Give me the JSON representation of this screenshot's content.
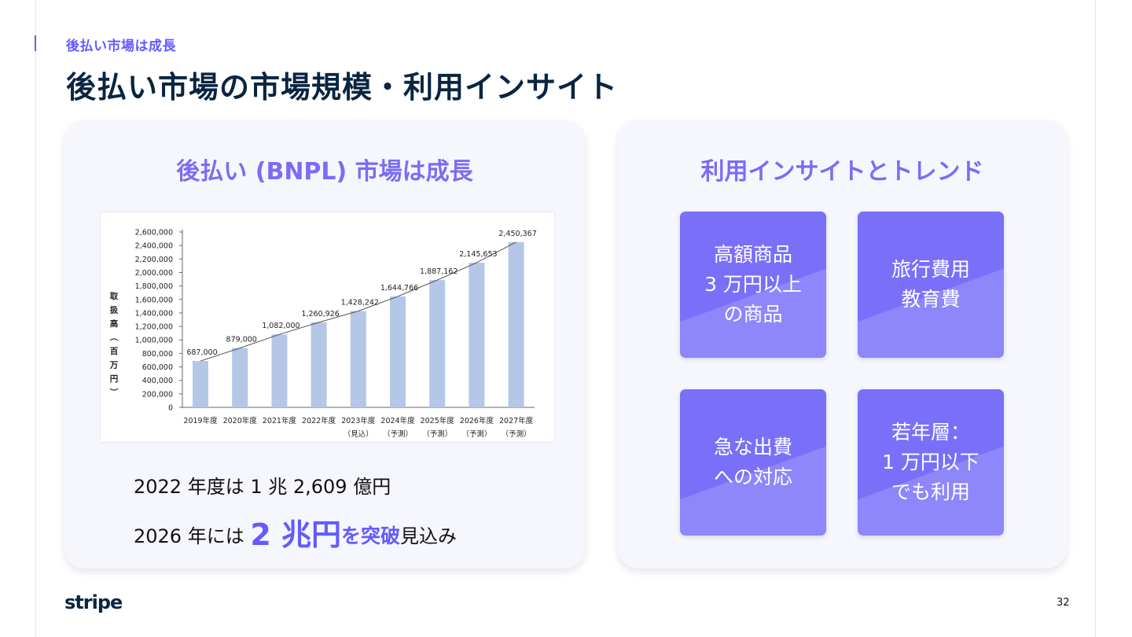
{
  "header": {
    "eyebrow": "後払い市場は成長",
    "title": "後払い市場の市場規模・利用インサイト"
  },
  "left_card": {
    "title": "後払い (BNPL) 市場は成長",
    "summary_line1": "2022 年度は 1 兆 2,609 億円",
    "summary_line2": {
      "prefix": "2026 年には ",
      "highlight_big": "2 兆円",
      "highlight_mid": "を突破",
      "suffix": "見込み"
    }
  },
  "right_card": {
    "title": "利用インサイトとトレンド",
    "tiles": [
      {
        "text": "高額商品\n3 万円以上\nの商品"
      },
      {
        "text": "旅行費用\n教育費"
      },
      {
        "text": "急な出費\nへの対応"
      },
      {
        "text": "若年層：\n1 万円以下\nでも利用"
      }
    ]
  },
  "chart_data": {
    "type": "bar",
    "categories": [
      "2019年度",
      "2020年度",
      "2021年度",
      "2022年度",
      "2023年度",
      "2024年度",
      "2025年度",
      "2026年度",
      "2027年度"
    ],
    "sublabels": [
      "",
      "",
      "",
      "",
      "（見込）",
      "（予測）",
      "（予測）",
      "（予測）",
      "（予測）"
    ],
    "values": [
      687000,
      879000,
      1082000,
      1260926,
      1428242,
      1644766,
      1887162,
      2145653,
      2450367
    ],
    "value_labels": [
      "687,000",
      "879,000",
      "1,082,000",
      "1,260,926",
      "1,428,242",
      "1,644,766",
      "1,887,162",
      "2,145,653",
      "2,450,367"
    ],
    "ylabel": "取扱高（百万円）",
    "ylim": [
      0,
      2600000
    ],
    "yticks": [
      0,
      200000,
      400000,
      600000,
      800000,
      1000000,
      1200000,
      1400000,
      1600000,
      1800000,
      2000000,
      2200000,
      2400000,
      2600000
    ],
    "ytick_labels": [
      "0",
      "200,000",
      "400,000",
      "600,000",
      "800,000",
      "1,000,000",
      "1,200,000",
      "1,400,000",
      "1,600,000",
      "1,800,000",
      "2,000,000",
      "2,200,000",
      "2,400,000",
      "2,600,000"
    ],
    "grid": false,
    "trend_line": true,
    "colors": {
      "bar": "#b4c7e7",
      "line": "#555555",
      "text": "#222222"
    }
  },
  "footer": {
    "logo": "stripe",
    "page_number": "32"
  },
  "colors": {
    "accent": "#635bff",
    "navy": "#0a2540",
    "card_bg": "#f6f7fc",
    "tile": "#7a6ff9"
  }
}
